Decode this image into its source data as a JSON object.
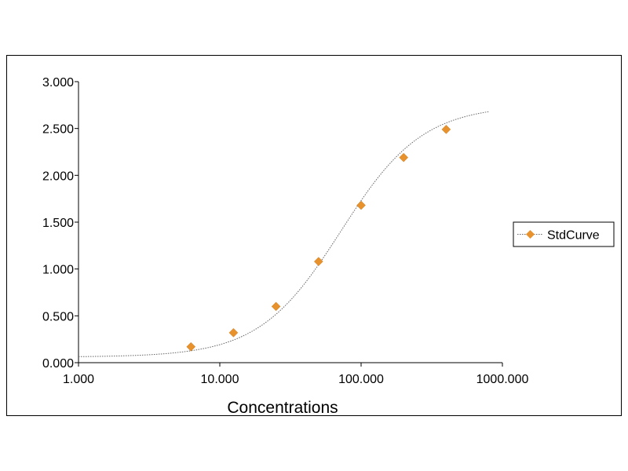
{
  "chart_data": {
    "type": "scatter",
    "title": "",
    "xlabel": "Concentrations",
    "ylabel": "",
    "x_scale": "log",
    "xlim": [
      1,
      1000
    ],
    "ylim": [
      0,
      3
    ],
    "grid": false,
    "legend_position": "right",
    "x_ticks": [
      1,
      10,
      100,
      1000
    ],
    "x_tick_labels": [
      "1.000",
      "10.000",
      "100.000",
      "1000.000"
    ],
    "y_ticks": [
      0,
      0.5,
      1,
      1.5,
      2,
      2.5,
      3
    ],
    "y_tick_labels": [
      "0.000",
      "0.500",
      "1.000",
      "1.500",
      "2.000",
      "2.500",
      "3.000"
    ],
    "series": [
      {
        "name": "StdCurve",
        "color": "#e8922e",
        "marker": "diamond",
        "line_style": "dotted",
        "points": [
          {
            "x": 6.25,
            "y": 0.17
          },
          {
            "x": 12.5,
            "y": 0.32
          },
          {
            "x": 25,
            "y": 0.6
          },
          {
            "x": 50,
            "y": 1.08
          },
          {
            "x": 100,
            "y": 1.68
          },
          {
            "x": 200,
            "y": 2.19
          },
          {
            "x": 400,
            "y": 2.49
          }
        ]
      }
    ]
  }
}
